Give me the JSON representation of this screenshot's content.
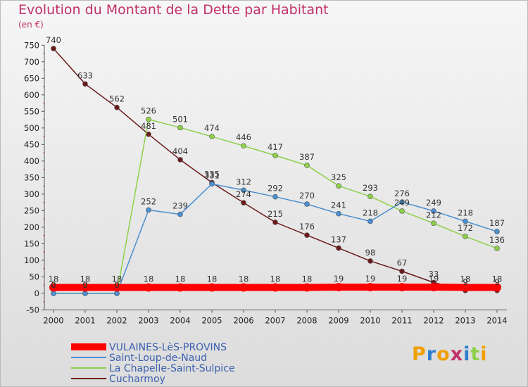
{
  "chart_data": {
    "type": "line",
    "title": "Evolution du Montant de la Dette par Habitant",
    "unit_label": "(en €)",
    "x": [
      "2000",
      "2001",
      "2002",
      "2003",
      "2004",
      "2005",
      "2006",
      "2007",
      "2008",
      "2009",
      "2010",
      "2011",
      "2012",
      "2013",
      "2014"
    ],
    "ylim": [
      -50,
      750
    ],
    "yticks": [
      -50,
      0,
      50,
      100,
      150,
      200,
      250,
      300,
      350,
      400,
      450,
      500,
      550,
      600,
      650,
      700,
      750
    ],
    "grid": false,
    "legend_position": "bottom-left",
    "series": [
      {
        "name": "VULAINES-LèS-PROVINS",
        "color": "#ff0000",
        "values": [
          18,
          18,
          18,
          18,
          18,
          18,
          18,
          18,
          18,
          19,
          19,
          19,
          19,
          18,
          18
        ],
        "labels": [
          "18",
          "18",
          "18",
          "18",
          "18",
          "18",
          "18",
          "18",
          "18",
          "19",
          "19",
          "19",
          "19",
          "18",
          "18"
        ]
      },
      {
        "name": "Saint-Loup-de-Naud",
        "color": "#4a8fd0",
        "values": [
          0,
          0,
          0,
          252,
          239,
          331,
          312,
          292,
          270,
          241,
          218,
          276,
          249,
          218,
          187
        ],
        "labels": [
          "0",
          "0",
          "0",
          "252",
          "239",
          "331",
          "312",
          "292",
          "270",
          "241",
          "218",
          "276",
          "249",
          "218",
          "187"
        ]
      },
      {
        "name": "La Chapelle-Saint-Sulpice",
        "color": "#8fd04a",
        "values": [
          0,
          0,
          0,
          526,
          501,
          474,
          446,
          417,
          387,
          325,
          293,
          249,
          212,
          172,
          136
        ],
        "labels": [
          "0",
          "0",
          "0",
          "526",
          "501",
          "474",
          "446",
          "417",
          "387",
          "325",
          "293",
          "249",
          "212",
          "172",
          "136"
        ]
      },
      {
        "name": "Cucharmoy",
        "color": "#6b1a1a",
        "values": [
          740,
          633,
          562,
          481,
          404,
          335,
          274,
          215,
          176,
          137,
          98,
          67,
          33,
          9,
          9
        ],
        "labels": [
          "740",
          "633",
          "562",
          "481",
          "404",
          "335",
          "274",
          "215",
          "176",
          "137",
          "98",
          "67",
          "33",
          "9",
          "9"
        ]
      }
    ]
  },
  "logo_text": "Proxiti",
  "logo_colors": [
    "#f0a000",
    "#2f7fd0",
    "#f0a000",
    "#c0306a",
    "#2f7fd0",
    "#8fd04a",
    "#f0a000"
  ]
}
